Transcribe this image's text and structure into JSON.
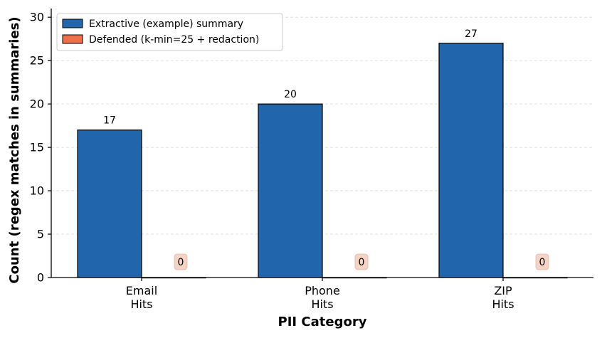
{
  "chart_data": {
    "type": "bar",
    "categories": [
      "Email\nHits",
      "Phone\nHits",
      "ZIP\nHits"
    ],
    "series": [
      {
        "name": "Extractive (example) summary",
        "values": [
          17,
          20,
          27
        ],
        "color": "#2166ac"
      },
      {
        "name": "Defended (k-min=25 + redaction)",
        "values": [
          0,
          0,
          0
        ],
        "color": "#ef6f4a"
      }
    ],
    "data_labels": [
      [
        "17",
        "20",
        "27"
      ],
      [
        "0",
        "0",
        "0"
      ]
    ],
    "xlabel": "PII Category",
    "ylabel": "Count (regex matches in summaries)",
    "ylim": [
      0,
      31
    ],
    "yticks": [
      0,
      5,
      10,
      15,
      20,
      25,
      30
    ],
    "grid": true,
    "legend_position": "top-left",
    "zero_label_bg": "#f4d4c6"
  }
}
